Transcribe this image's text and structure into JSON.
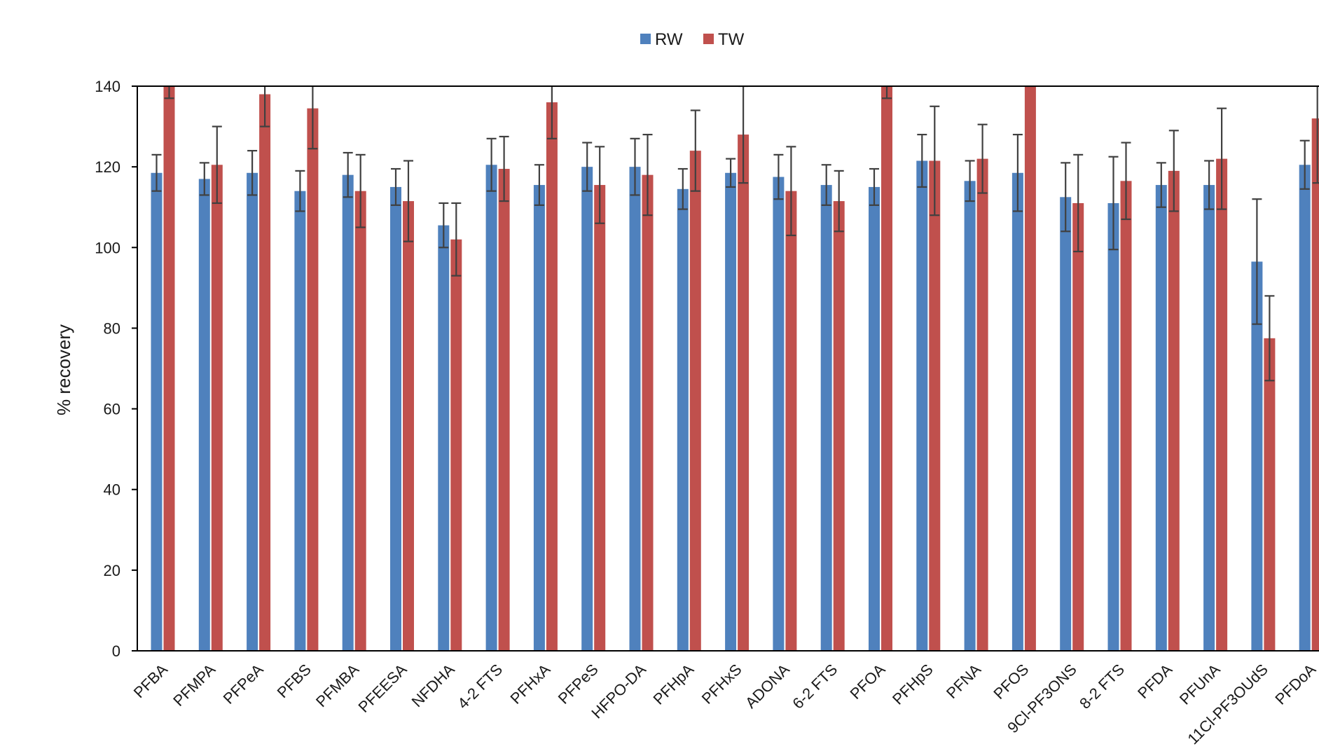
{
  "chart_data": {
    "type": "bar",
    "title": "",
    "xlabel": "",
    "ylabel": "% recovery",
    "ylim": [
      0,
      140
    ],
    "yticks": [
      0,
      20,
      40,
      60,
      80,
      100,
      120,
      140
    ],
    "grid": false,
    "legend_position": "top-center",
    "error_bars": true,
    "categories": [
      "PFBA",
      "PFMPA",
      "PFPeA",
      "PFBS",
      "PFMBA",
      "PFEESA",
      "NFDHA",
      "4-2 FTS",
      "PFHxA",
      "PFPeS",
      "HFPO-DA",
      "PFHpA",
      "PFHxS",
      "ADONA",
      "6-2 FTS",
      "PFOA",
      "PFHpS",
      "PFNA",
      "PFOS",
      "9Cl-PF3ONS",
      "8-2 FTS",
      "PFDA",
      "PFUnA",
      "11Cl-PF3OUdS",
      "PFDoA"
    ],
    "series": [
      {
        "name": "RW",
        "color": "#4f81bd",
        "values": [
          118.5,
          117.0,
          118.5,
          114.0,
          118.0,
          115.0,
          105.5,
          120.5,
          115.5,
          120.0,
          120.0,
          114.5,
          118.5,
          117.5,
          115.5,
          115.0,
          121.5,
          116.5,
          118.5,
          112.5,
          111.0,
          115.5,
          115.5,
          96.5,
          120.5
        ],
        "errors": [
          4.5,
          4.0,
          5.5,
          5.0,
          5.5,
          4.5,
          5.5,
          6.5,
          5.0,
          6.0,
          7.0,
          5.0,
          3.5,
          5.5,
          5.0,
          4.5,
          6.5,
          5.0,
          9.5,
          8.5,
          11.5,
          5.5,
          6.0,
          15.5,
          6.0
        ]
      },
      {
        "name": "TW",
        "color": "#c0504d",
        "values": [
          145.0,
          120.5,
          138.0,
          134.5,
          114.0,
          111.5,
          102.0,
          119.5,
          136.0,
          115.5,
          118.0,
          124.0,
          128.0,
          114.0,
          111.5,
          145.0,
          121.5,
          122.0,
          148.0,
          111.0,
          116.5,
          119.0,
          122.0,
          77.5,
          132.0
        ],
        "errors": [
          8.0,
          9.5,
          8.0,
          10.0,
          9.0,
          10.0,
          9.0,
          8.0,
          9.0,
          9.5,
          10.0,
          10.0,
          12.0,
          11.0,
          7.5,
          8.0,
          13.5,
          8.5,
          8.0,
          12.0,
          9.5,
          10.0,
          12.5,
          10.5,
          16.0
        ]
      }
    ]
  }
}
